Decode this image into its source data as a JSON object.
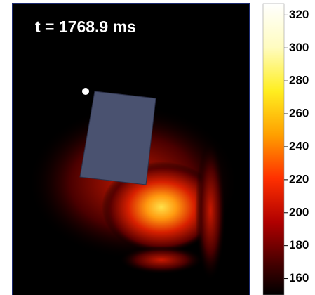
{
  "frame": {
    "label": "t = 1768.9 ms"
  },
  "colorbar": {
    "lim": [
      150,
      327
    ],
    "ticks": [
      160,
      180,
      200,
      220,
      240,
      260,
      280,
      300,
      320
    ]
  }
}
